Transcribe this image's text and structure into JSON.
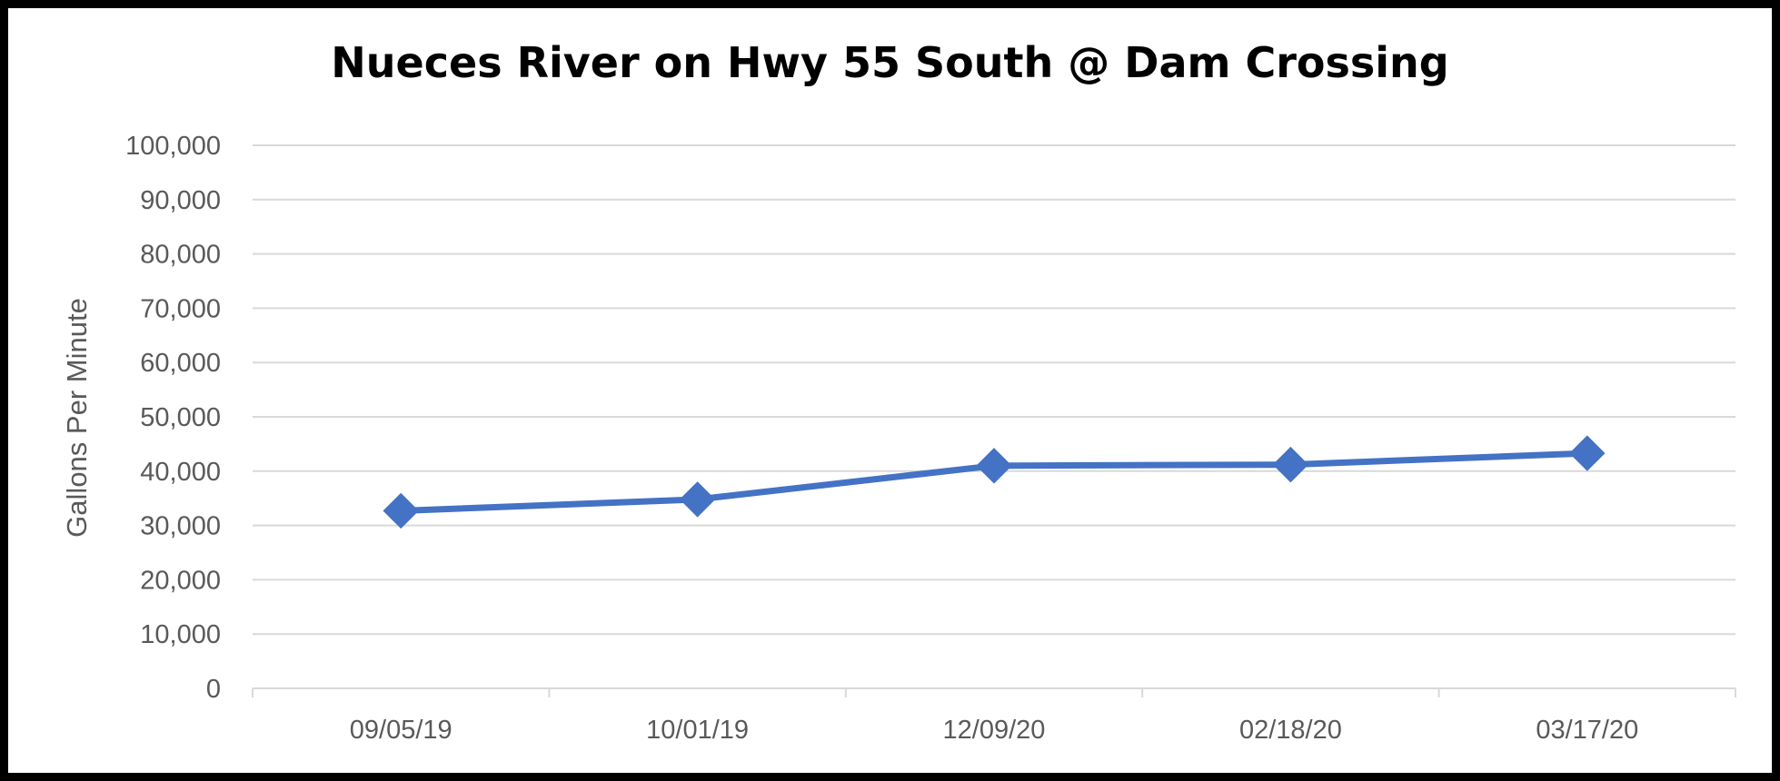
{
  "chart_data": {
    "type": "line",
    "title": "Nueces River on Hwy 55 South @ Dam Crossing",
    "xlabel": "",
    "ylabel": "Gallons Per Minute",
    "categories": [
      "09/05/19",
      "10/01/19",
      "12/09/20",
      "02/18/20",
      "03/17/20"
    ],
    "series": [
      {
        "values": [
          32700,
          34800,
          41000,
          41200,
          43300
        ]
      }
    ],
    "ylim": [
      0,
      100000
    ],
    "yticks": [
      0,
      10000,
      20000,
      30000,
      40000,
      50000,
      60000,
      70000,
      80000,
      90000,
      100000
    ],
    "ytick_labels": [
      "0",
      "10,000",
      "20,000",
      "30,000",
      "40,000",
      "50,000",
      "60,000",
      "70,000",
      "80,000",
      "90,000",
      "100,000"
    ],
    "grid": true,
    "legend": "none",
    "marker": "diamond",
    "colors": {
      "series": "#4472C4",
      "grid": "#D9D9D9",
      "text": "#595959",
      "border": "#000000"
    }
  }
}
